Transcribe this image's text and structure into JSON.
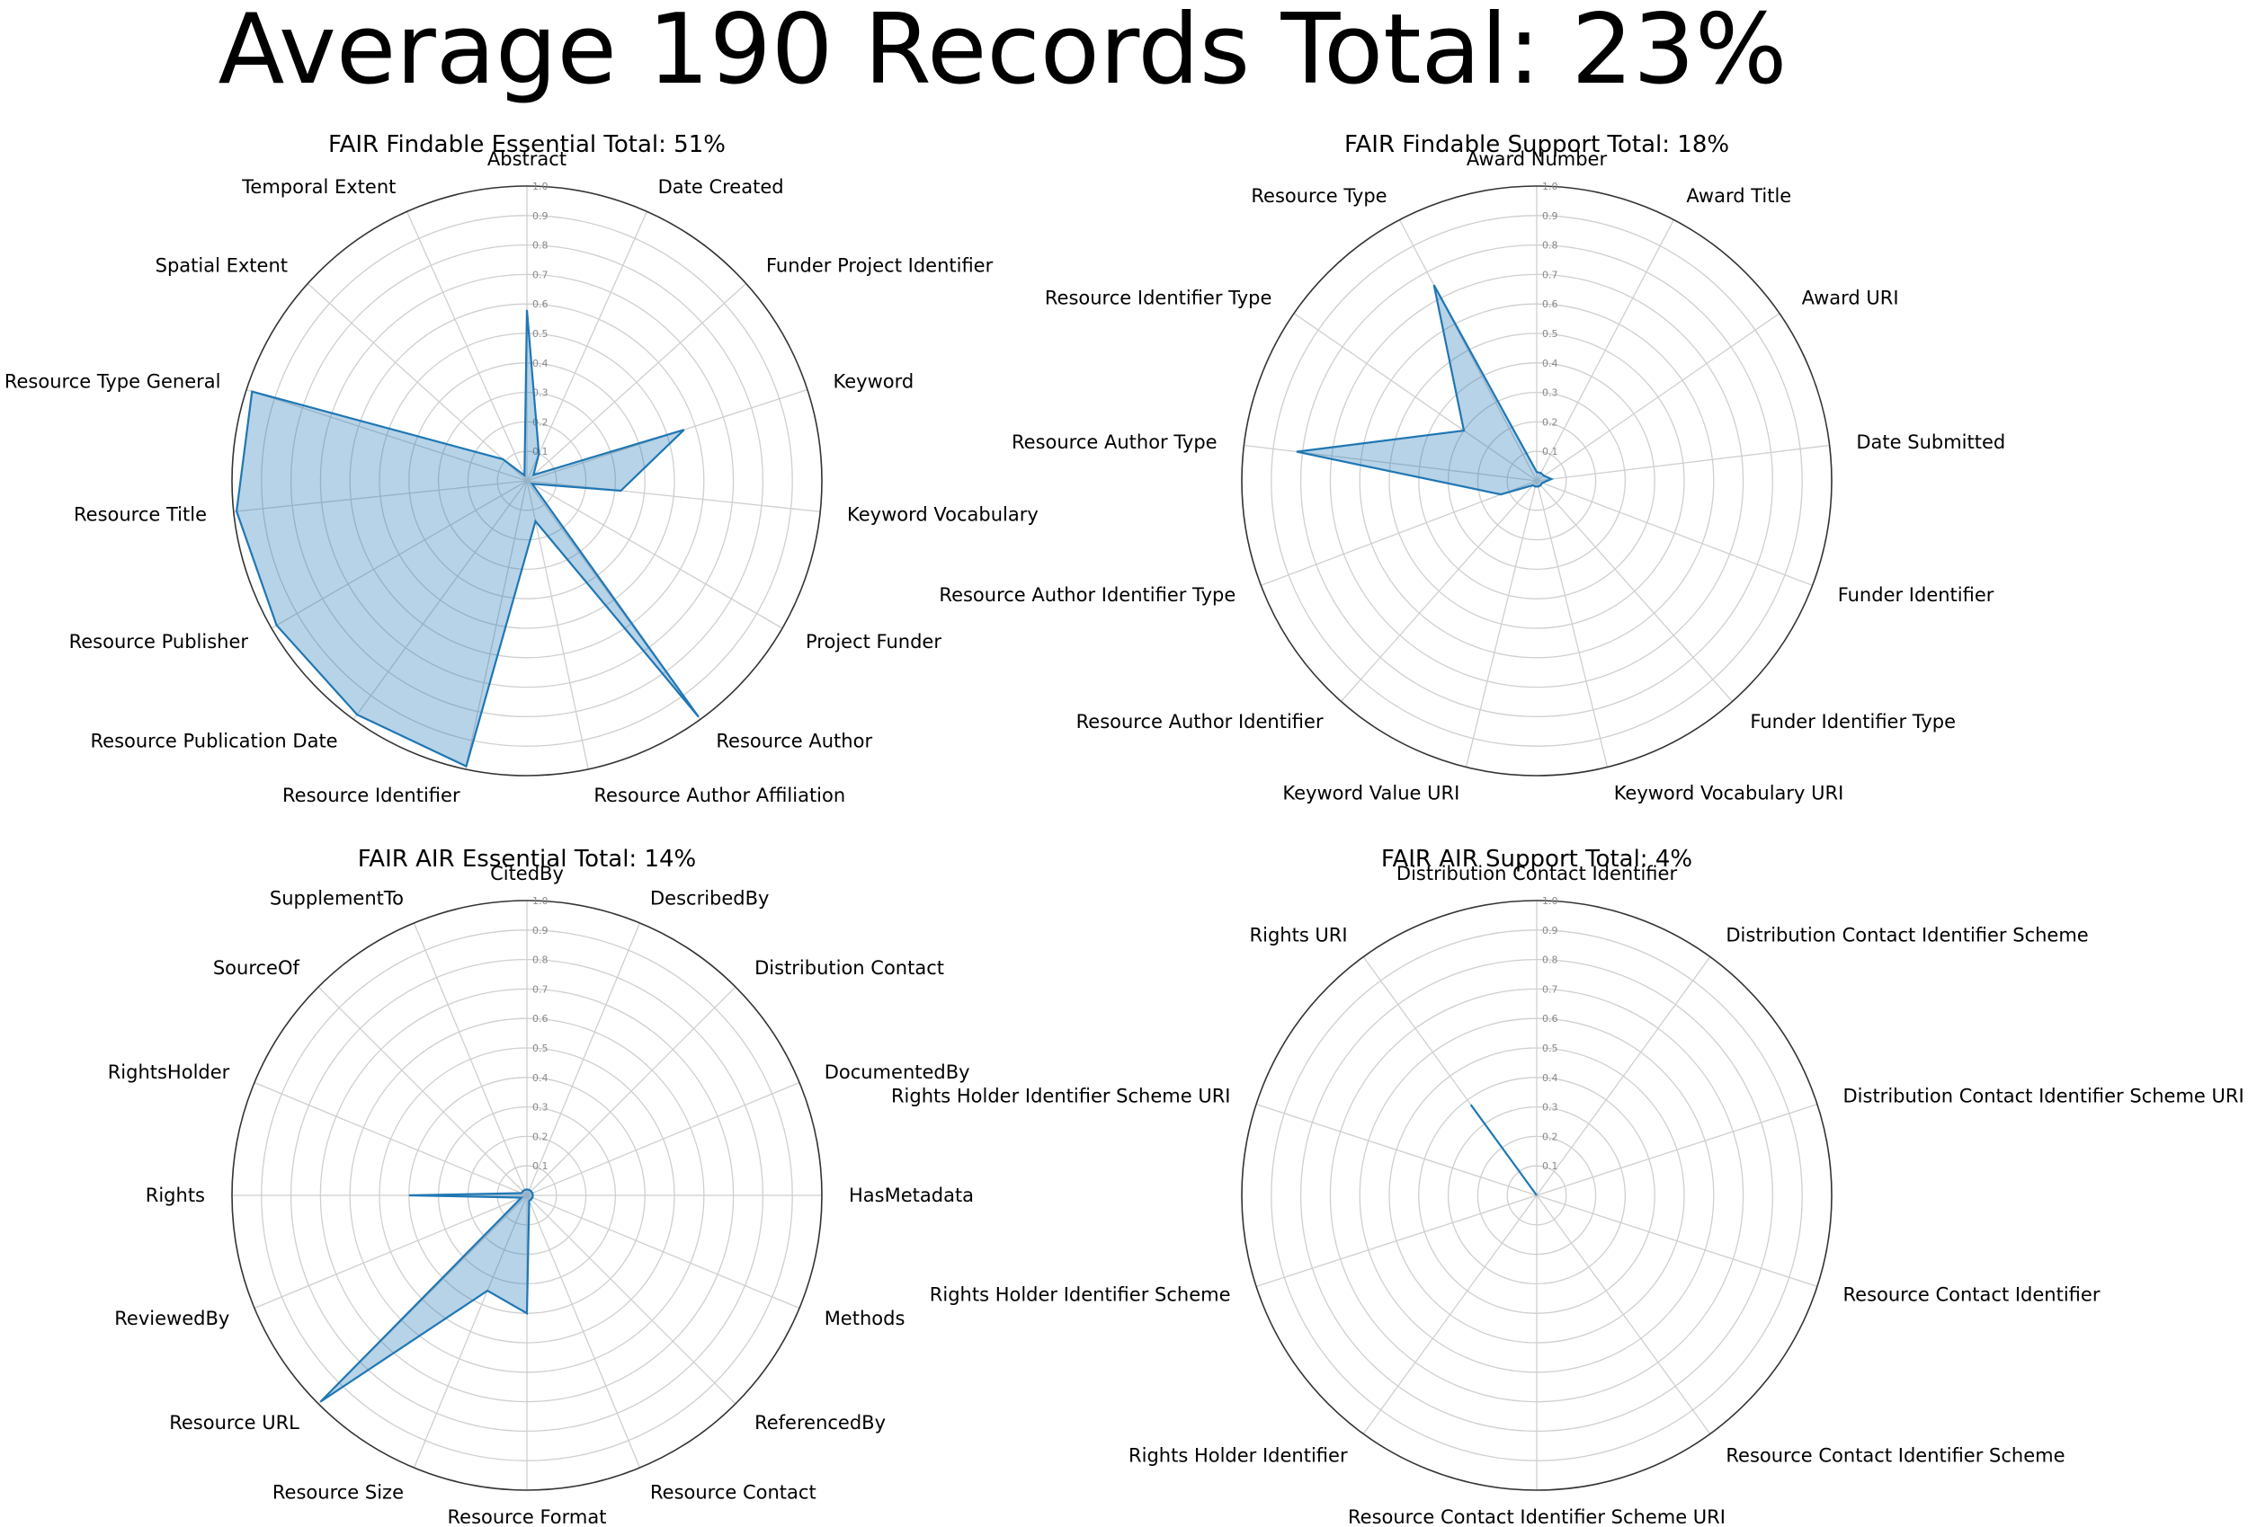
{
  "page_title": "Average  190 Records  Total: 23%",
  "colors": {
    "line": "#1f77b4",
    "fill": "#1f77b4",
    "grid": "#cfcfcf",
    "frame": "#333333"
  },
  "chart_data": [
    {
      "type": "radar",
      "title": "FAIR Findable Essential  Total: 51%",
      "rlim": [
        0,
        1.0
      ],
      "rticks": [
        "0.1",
        "0.2",
        "0.3",
        "0.4",
        "0.5",
        "0.6",
        "0.7",
        "0.8",
        "0.9",
        "1.0"
      ],
      "grid": true,
      "categories": [
        "Abstract",
        "Date Created",
        "Funder Project Identifier",
        "Keyword",
        "Keyword Vocabulary",
        "Project Funder",
        "Resource Author",
        "Resource Author Affiliation",
        "Resource Identifier",
        "Resource Publication Date",
        "Resource Publisher",
        "Resource Title",
        "Resource Type General",
        "Spatial Extent",
        "Temporal Extent"
      ],
      "values": [
        0.58,
        0.1,
        0.03,
        0.56,
        0.32,
        0.02,
        0.99,
        0.14,
        0.99,
        0.98,
        0.98,
        0.99,
        0.98,
        0.11,
        0.02
      ]
    },
    {
      "type": "radar",
      "title": "FAIR Findable Support  Total: 18%",
      "rlim": [
        0,
        1.0
      ],
      "rticks": [
        "0.1",
        "0.2",
        "0.3",
        "0.4",
        "0.5",
        "0.6",
        "0.7",
        "0.8",
        "0.9",
        "1.0"
      ],
      "grid": true,
      "categories": [
        "Award Number",
        "Award Title",
        "Award URI",
        "Date Submitted",
        "Funder Identifier",
        "Funder Identifier Type",
        "Keyword Vocabulary URI",
        "Keyword Value URI",
        "Resource Author Identifier",
        "Resource Author Identifier Type",
        "Resource Author Type",
        "Resource Identifier Type",
        "Resource Type"
      ],
      "values": [
        0.03,
        0.03,
        0.03,
        0.05,
        0.02,
        0.02,
        0.02,
        0.02,
        0.02,
        0.13,
        0.82,
        0.3,
        0.75
      ]
    },
    {
      "type": "radar",
      "title": "FAIR AIR Essential  Total: 14%",
      "rlim": [
        0,
        1.0
      ],
      "rticks": [
        "0.1",
        "0.2",
        "0.3",
        "0.4",
        "0.5",
        "0.6",
        "0.7",
        "0.8",
        "0.9",
        "1.0"
      ],
      "grid": true,
      "categories": [
        "CitedBy",
        "DescribedBy",
        "Distribution Contact",
        "DocumentedBy",
        "HasMetadata",
        "Methods",
        "ReferencedBy",
        "Resource Contact",
        "Resource Format",
        "Resource Size",
        "Resource URL",
        "ReviewedBy",
        "Rights",
        "RightsHolder",
        "SourceOf",
        "SupplementTo"
      ],
      "values": [
        0.02,
        0.02,
        0.02,
        0.02,
        0.02,
        0.02,
        0.02,
        0.02,
        0.4,
        0.35,
        0.99,
        0.02,
        0.4,
        0.02,
        0.02,
        0.02
      ]
    },
    {
      "type": "radar",
      "title": "FAIR AIR Support  Total: 4%",
      "rlim": [
        0,
        1.0
      ],
      "rticks": [
        "0.1",
        "0.2",
        "0.3",
        "0.4",
        "0.5",
        "0.6",
        "0.7",
        "0.8",
        "0.9",
        "1.0"
      ],
      "grid": true,
      "categories": [
        "Distribution Contact Identifier",
        "Distribution Contact Identifier Scheme",
        "Distribution Contact Identifier Scheme URI",
        "Resource Contact Identifier",
        "Resource Contact Identifier Scheme",
        "Resource Contact Identifier Scheme URI",
        "Rights Holder Identifier",
        "Rights Holder Identifier Scheme",
        "Rights Holder Identifier Scheme URI",
        "Rights URI"
      ],
      "values": [
        0.0,
        0.0,
        0.0,
        0.0,
        0.0,
        0.0,
        0.0,
        0.0,
        0.0,
        0.38
      ]
    }
  ]
}
